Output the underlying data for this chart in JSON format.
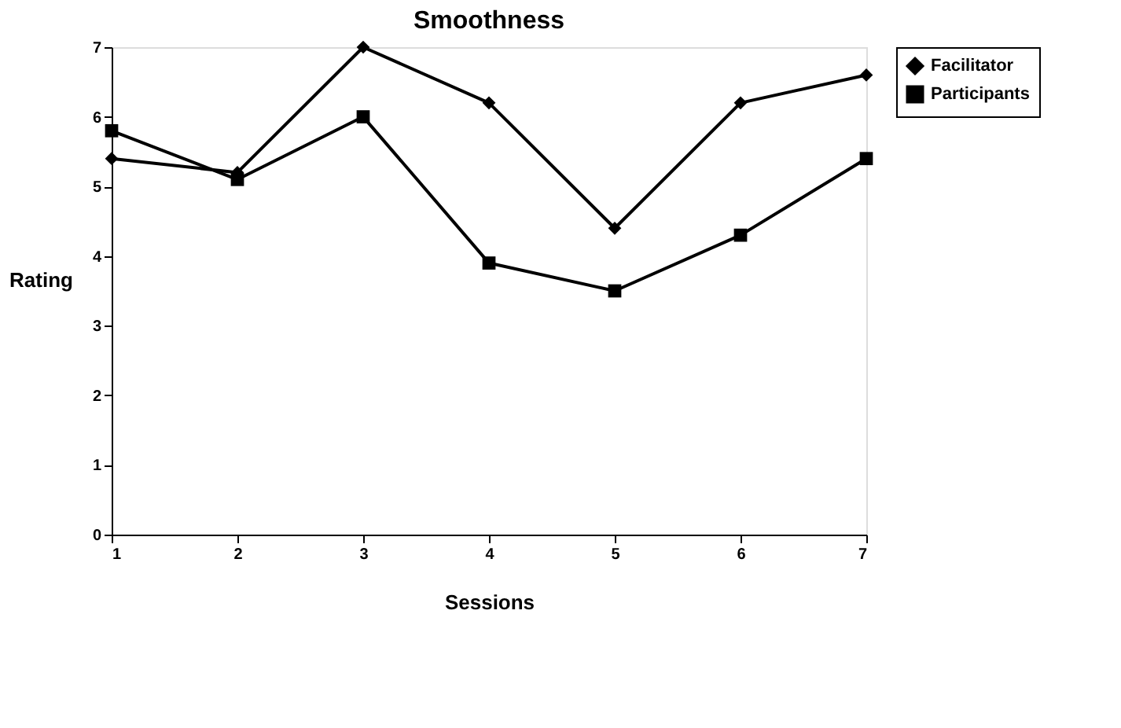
{
  "chart_data": {
    "type": "line",
    "title": "Smoothness",
    "xlabel": "Sessions",
    "ylabel": "Rating",
    "x": [
      1,
      2,
      3,
      4,
      5,
      6,
      7
    ],
    "series": [
      {
        "name": "Facilitator",
        "color": "#000000",
        "marker": "diamond",
        "values": [
          5.4,
          5.2,
          7.0,
          6.2,
          4.4,
          6.2,
          6.6
        ]
      },
      {
        "name": "Participants",
        "color": "#000000",
        "marker": "square",
        "values": [
          5.8,
          5.1,
          6.0,
          3.9,
          3.5,
          4.3,
          5.4
        ]
      }
    ],
    "xlim": [
      1,
      7
    ],
    "xticks": [
      1,
      2,
      3,
      4,
      5,
      6,
      7
    ],
    "ylim": [
      0,
      7
    ],
    "yticks": [
      0,
      1,
      2,
      3,
      4,
      5,
      6,
      7
    ],
    "grid": false,
    "legend": "right",
    "line_style": "solid"
  }
}
